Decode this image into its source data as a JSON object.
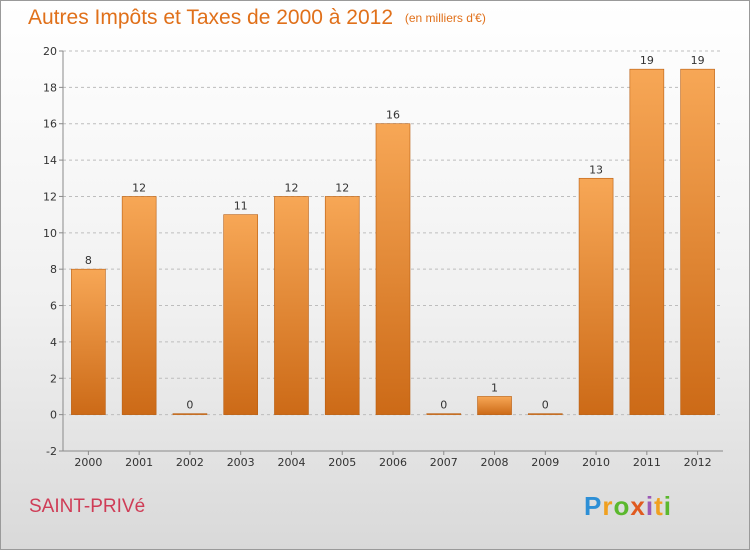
{
  "title": {
    "main": "Autres Impôts et Taxes de 2000 à 2012",
    "unit": "(en milliers d'€)"
  },
  "commune": "SAINT-PRIVé",
  "logo": {
    "letters": [
      {
        "char": "P",
        "color": "#2d8fd6"
      },
      {
        "char": "r",
        "color": "#f0a020"
      },
      {
        "char": "o",
        "color": "#5bb82e"
      },
      {
        "char": "x",
        "color": "#e05a1f"
      },
      {
        "char": "i",
        "color": "#9b59b6"
      },
      {
        "char": "t",
        "color": "#f0a020"
      },
      {
        "char": "i",
        "color": "#5bb82e"
      }
    ]
  },
  "colors": {
    "bar_top": "#f7a756",
    "bar_bottom": "#cc6a17",
    "bar_stroke": "#b85e12",
    "axis": "#8a8a8a",
    "grid": "#bdbdbd",
    "label": "#333333"
  },
  "chart_data": {
    "type": "bar",
    "categories": [
      "2000",
      "2001",
      "2002",
      "2003",
      "2004",
      "2005",
      "2006",
      "2007",
      "2008",
      "2009",
      "2010",
      "2011",
      "2012"
    ],
    "values": [
      8,
      12,
      0,
      11,
      12,
      12,
      16,
      0,
      1,
      0,
      13,
      19,
      19
    ],
    "data_labels": [
      "8",
      "12",
      "0",
      "11",
      "12",
      "12",
      "16",
      "0",
      "1",
      "0",
      "13",
      "19",
      "19"
    ],
    "yticks": [
      "-2",
      "0",
      "2",
      "4",
      "6",
      "8",
      "10",
      "12",
      "14",
      "16",
      "18",
      "20"
    ],
    "ylim": [
      -2,
      20
    ],
    "grid": "horizontal dashed",
    "legend": "none"
  }
}
